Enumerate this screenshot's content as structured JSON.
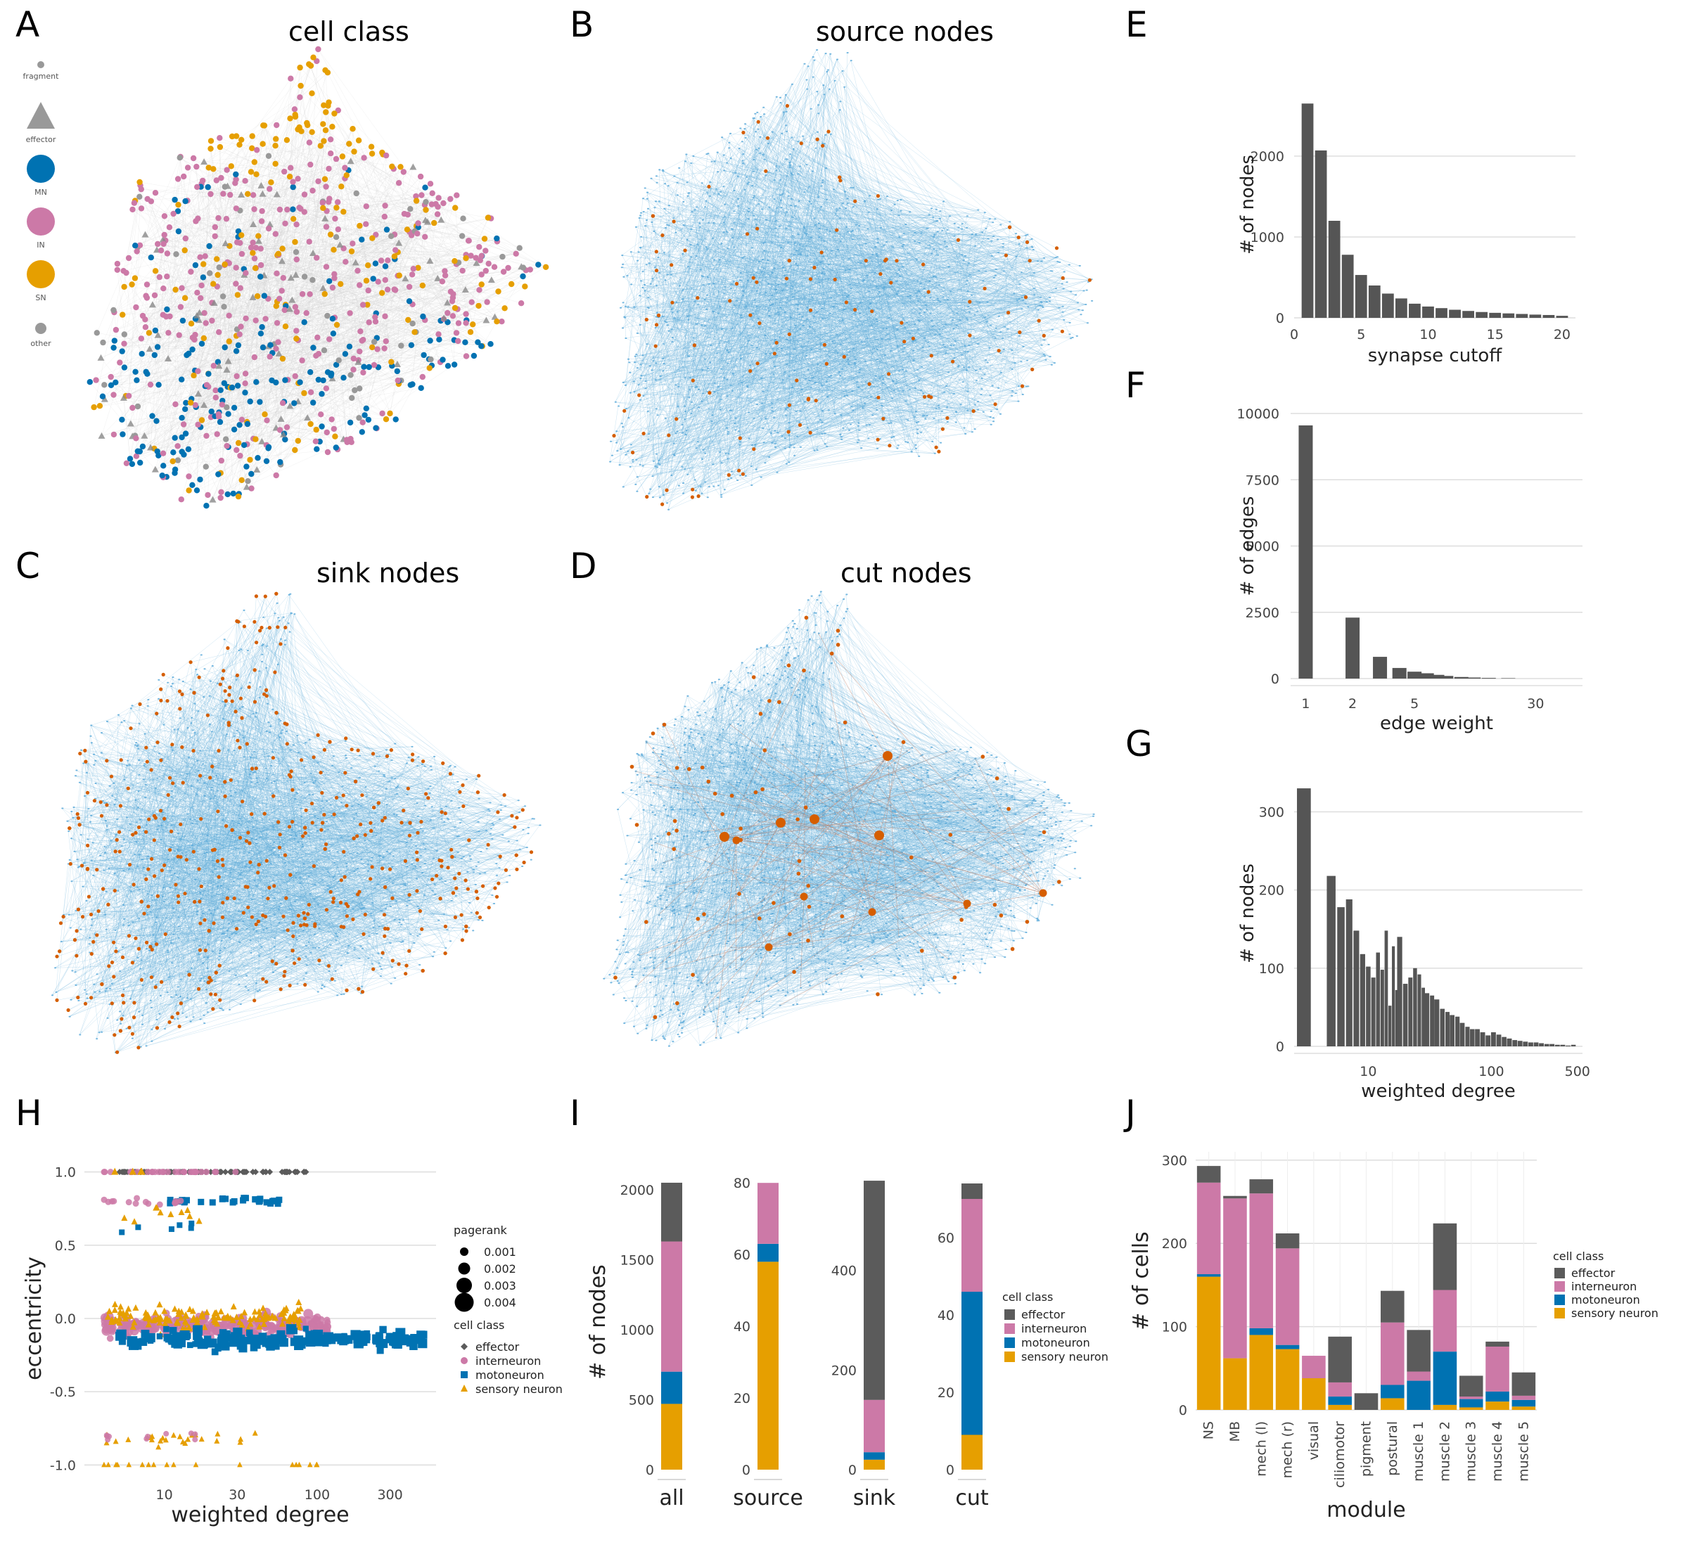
{
  "colors": {
    "effector": "#5b5b5b",
    "interneuron": "#cc79a7",
    "motoneuron": "#0072b2",
    "sensory": "#e69f00",
    "grey": "#999999",
    "edge": "#56a7d8",
    "highlight": "#d55e00",
    "bar": "#555555"
  },
  "panels": {
    "A": {
      "letter": "A",
      "title": "cell class",
      "legend": [
        "fragment",
        "effector",
        "MN",
        "IN",
        "SN",
        "other"
      ]
    },
    "B": {
      "letter": "B",
      "title": "source nodes"
    },
    "C": {
      "letter": "C",
      "title": "sink nodes"
    },
    "D": {
      "letter": "D",
      "title": "cut nodes"
    },
    "E": {
      "letter": "E"
    },
    "F": {
      "letter": "F"
    },
    "G": {
      "letter": "G"
    },
    "H": {
      "letter": "H"
    },
    "I": {
      "letter": "I"
    },
    "J": {
      "letter": "J"
    }
  },
  "chart_data": [
    {
      "panel": "E",
      "type": "bar",
      "xlabel": "synapse cutoff",
      "ylabel": "# of nodes",
      "x": [
        1,
        2,
        3,
        4,
        5,
        6,
        7,
        8,
        9,
        10,
        11,
        12,
        13,
        14,
        15,
        16,
        17,
        18,
        19,
        20
      ],
      "values": [
        2650,
        2070,
        1200,
        780,
        530,
        400,
        300,
        240,
        175,
        140,
        120,
        100,
        85,
        72,
        62,
        55,
        48,
        40,
        35,
        25
      ],
      "xlim": [
        0,
        21
      ],
      "ylim": [
        0,
        2800
      ],
      "xticks": [
        0,
        5,
        10,
        15,
        20
      ],
      "yticks": [
        0,
        1000,
        2000
      ],
      "grid": true
    },
    {
      "panel": "F",
      "type": "bar",
      "scale_x": "log",
      "xlabel": "edge weight",
      "ylabel": "# of edges",
      "x": [
        1,
        2,
        3,
        4,
        5,
        6,
        7,
        8,
        10,
        12,
        15,
        20
      ],
      "values": [
        9550,
        2300,
        820,
        400,
        260,
        200,
        140,
        100,
        60,
        40,
        25,
        15
      ],
      "xlim": [
        0.8,
        60
      ],
      "ylim": [
        0,
        10000
      ],
      "xticks": [
        1,
        2,
        5,
        30
      ],
      "yticks": [
        0,
        2500,
        5000,
        7500,
        10000
      ],
      "grid": true
    },
    {
      "panel": "G",
      "type": "bar",
      "scale_x": "log",
      "xlabel": "weighted degree",
      "ylabel": "# of nodes",
      "x": [
        3,
        4,
        5,
        6,
        7,
        8,
        9,
        10,
        11,
        12,
        13,
        14,
        15,
        16,
        17,
        18,
        20,
        22,
        24,
        26,
        28,
        30,
        33,
        36,
        40,
        44,
        48,
        53,
        58,
        64,
        70,
        77,
        85,
        94,
        104,
        115,
        127,
        140,
        155,
        171,
        189,
        209,
        231,
        255,
        282,
        311,
        344,
        380,
        420,
        464
      ],
      "values": [
        330,
        0,
        218,
        178,
        188,
        148,
        118,
        102,
        88,
        120,
        98,
        148,
        52,
        128,
        72,
        140,
        80,
        88,
        100,
        92,
        75,
        68,
        65,
        60,
        48,
        44,
        40,
        38,
        30,
        25,
        22,
        22,
        18,
        14,
        18,
        15,
        12,
        10,
        8,
        7,
        6,
        5,
        5,
        4,
        3,
        3,
        2,
        2,
        1,
        2
      ],
      "xlim": [
        2.5,
        550
      ],
      "ylim": [
        0,
        340
      ],
      "xticks": [
        10,
        100,
        500
      ],
      "yticks": [
        0,
        100,
        200,
        300
      ],
      "grid": true
    },
    {
      "panel": "H",
      "type": "scatter",
      "scale_x": "log",
      "xlabel": "weighted degree",
      "ylabel": "eccentricity",
      "xlim": [
        3,
        600
      ],
      "ylim": [
        -1.08,
        1.08
      ],
      "xticks": [
        10,
        30,
        100,
        300
      ],
      "yticks": [
        -1.0,
        -0.5,
        0.0,
        0.5,
        1.0
      ],
      "legend": {
        "size_title": "pagerank",
        "sizes": [
          0.001,
          0.002,
          0.003,
          0.004
        ],
        "size_labels": [
          "0.001",
          "0.002",
          "0.003",
          "0.004"
        ],
        "class_title": "cell class",
        "classes": [
          "effector",
          "interneuron",
          "motoneuron",
          "sensory neuron"
        ]
      }
    },
    {
      "panel": "I",
      "type": "bar",
      "stacked": true,
      "ylabel": "# of nodes",
      "categories": [
        "all",
        "source",
        "sink",
        "cut"
      ],
      "series_names": [
        "effector",
        "interneuron",
        "motoneuron",
        "sensory neuron"
      ],
      "groups": [
        {
          "category": "all",
          "values": {
            "sensory neuron": 470,
            "motoneuron": 230,
            "interneuron": 930,
            "effector": 420
          },
          "yticks": [
            0,
            500,
            1000,
            1500,
            2000
          ],
          "ylim": [
            0,
            2100
          ]
        },
        {
          "category": "source",
          "values": {
            "sensory neuron": 58,
            "motoneuron": 5,
            "interneuron": 17,
            "effector": 0
          },
          "yticks": [
            0,
            20,
            40,
            60,
            80
          ],
          "ylim": [
            0,
            82
          ]
        },
        {
          "category": "sink",
          "values": {
            "sensory neuron": 20,
            "motoneuron": 15,
            "interneuron": 105,
            "effector": 440
          },
          "yticks": [
            0,
            200,
            400
          ],
          "ylim": [
            0,
            590
          ]
        },
        {
          "category": "cut",
          "values": {
            "sensory neuron": 9,
            "motoneuron": 37,
            "interneuron": 24,
            "effector": 4
          },
          "yticks": [
            0,
            20,
            40,
            60
          ],
          "ylim": [
            0,
            76
          ]
        }
      ],
      "legend_title": "cell class"
    },
    {
      "panel": "J",
      "type": "bar",
      "stacked": true,
      "xlabel": "module",
      "ylabel": "# of cells",
      "categories": [
        "NS",
        "MB",
        "mech (l)",
        "mech (r)",
        "visual",
        "ciliomotor",
        "pigment",
        "postural",
        "muscle 1",
        "muscle 2",
        "muscle 3",
        "muscle 4",
        "muscle 5"
      ],
      "series": [
        {
          "name": "sensory neuron",
          "values": [
            160,
            62,
            90,
            73,
            38,
            6,
            0,
            14,
            0,
            6,
            3,
            10,
            4
          ]
        },
        {
          "name": "motoneuron",
          "values": [
            3,
            0,
            8,
            5,
            0,
            10,
            0,
            16,
            35,
            64,
            10,
            12,
            8
          ]
        },
        {
          "name": "interneuron",
          "values": [
            110,
            192,
            162,
            116,
            27,
            17,
            0,
            75,
            11,
            74,
            3,
            54,
            5
          ]
        },
        {
          "name": "effector",
          "values": [
            20,
            3,
            17,
            18,
            0,
            55,
            20,
            38,
            50,
            80,
            25,
            6,
            28
          ]
        }
      ],
      "ylim": [
        0,
        310
      ],
      "yticks": [
        0,
        100,
        200,
        300
      ],
      "grid": true,
      "legend_title": "cell class",
      "legend": [
        "effector",
        "interneuron",
        "motoneuron",
        "sensory neuron"
      ]
    }
  ]
}
